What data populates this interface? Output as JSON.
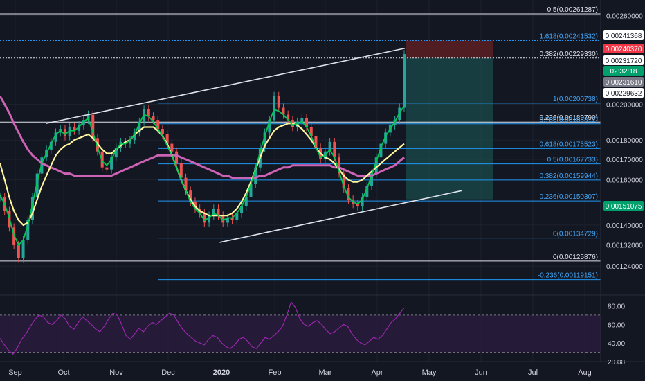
{
  "chart_data": {
    "type": "candlestick",
    "background": "#131722",
    "colors": {
      "up": "#26a69a",
      "down": "#ef5350",
      "ma_fast": "#00c853",
      "ma_mid": "#fff59d",
      "ma_slow": "#ce63b6",
      "fib_line": "#2196f3",
      "fib_label": "#42a5f5",
      "white_line": "#e0e3eb",
      "rsi_line": "#9c27b0",
      "rsi_band": "#2a1b3d",
      "target_zone": "#1b4b4b",
      "stop_zone": "#5b1e22",
      "price_label_bg": "#ffffff",
      "price_label_red": "#f23645",
      "price_label_green": "#00a06c",
      "price_label_grey": "#787b86",
      "axis_text": "#d1d4dc"
    },
    "x_axis": {
      "labels": [
        "Sep",
        "Oct",
        "Nov",
        "Dec",
        "2020",
        "Feb",
        "Mar",
        "Apr",
        "May",
        "Jun",
        "Jul",
        "Aug"
      ],
      "bold_labels": [
        "2020"
      ]
    },
    "y_axis": {
      "scale": "log",
      "range": [
        0.00115,
        0.0027
      ],
      "ticks": [
        "0.00260000",
        "0.00200000",
        "0.00180000",
        "0.00170000",
        "0.00160000",
        "0.00140000",
        "0.00132000",
        "0.00124000"
      ]
    },
    "price_labels": [
      {
        "text": "0.00241368",
        "style": "white"
      },
      {
        "text": "0.00240370",
        "style": "red"
      },
      {
        "text": "0.00231720",
        "style": "white"
      },
      {
        "text": "02:32:18",
        "style": "white"
      },
      {
        "text": "0.00231610",
        "style": "grey"
      },
      {
        "text": "0.00229632",
        "style": "white"
      },
      {
        "text": "0.00151075",
        "style": "green"
      }
    ],
    "fib_levels_upper": [
      {
        "label": "0.5(0.00261287)",
        "value": 0.00261287,
        "color": "white"
      },
      {
        "label": "1.618(0.00241532)",
        "value": 0.00241532,
        "color": "blue"
      },
      {
        "label": "0.382(0.00229330)",
        "value": 0.0022933,
        "color": "white"
      }
    ],
    "fib_levels_right": [
      {
        "label": "1(0.00200738)",
        "value": 0.00200738,
        "color": "blue"
      },
      {
        "label": "0.236(0.00189790)",
        "value": 0.0018979,
        "color": "white"
      },
      {
        "label": "0.786(0.00188812)",
        "value": 0.00188812,
        "color": "blue"
      },
      {
        "label": "0.618(0.00175523)",
        "value": 0.00175523,
        "color": "blue"
      },
      {
        "label": "0.5(0.00167733)",
        "value": 0.00167733,
        "color": "blue"
      },
      {
        "label": "0.382(0.00159944)",
        "value": 0.00159944,
        "color": "blue"
      },
      {
        "label": "0.236(0.00150307)",
        "value": 0.00150307,
        "color": "blue"
      },
      {
        "label": "0(0.00134729)",
        "value": 0.00134729,
        "color": "blue"
      },
      {
        "label": "0(0.00125876)",
        "value": 0.00125876,
        "color": "white"
      },
      {
        "label": "-0.236(0.00119151)",
        "value": 0.00119151,
        "color": "blue"
      }
    ],
    "rsi": {
      "ticks": [
        "80.00",
        "60.00",
        "40.00",
        "20.00"
      ],
      "range": [
        20,
        90
      ],
      "overbought": 70,
      "oversold": 30,
      "values": [
        45,
        38,
        32,
        28,
        35,
        44,
        50,
        58,
        65,
        70,
        68,
        62,
        60,
        64,
        70,
        66,
        58,
        55,
        62,
        68,
        64,
        60,
        55,
        52,
        58,
        66,
        72,
        70,
        60,
        48,
        44,
        50,
        56,
        52,
        58,
        62,
        60,
        64,
        68,
        72,
        70,
        62,
        55,
        50,
        46,
        42,
        40,
        38,
        44,
        48,
        46,
        40,
        36,
        34,
        38,
        44,
        46,
        42,
        36,
        34,
        40,
        46,
        44,
        48,
        52,
        58,
        70,
        84,
        78,
        66,
        60,
        58,
        62,
        64,
        60,
        54,
        50,
        52,
        56,
        60,
        58,
        50,
        44,
        40,
        38,
        42,
        46,
        44,
        48,
        55,
        62,
        66,
        72,
        78
      ]
    },
    "series": [
      {
        "name": "price",
        "values": [
          0.00152,
          0.00146,
          0.00139,
          0.00132,
          0.00127,
          0.00134,
          0.00142,
          0.00152,
          0.00163,
          0.00171,
          0.00175,
          0.00179,
          0.00184,
          0.00186,
          0.00182,
          0.00187,
          0.00185,
          0.00188,
          0.00191,
          0.00194,
          0.00181,
          0.00174,
          0.00166,
          0.00165,
          0.00171,
          0.00176,
          0.00179,
          0.00178,
          0.0018,
          0.00184,
          0.0019,
          0.00197,
          0.00193,
          0.00191,
          0.00186,
          0.00183,
          0.00178,
          0.00174,
          0.00168,
          0.00161,
          0.00155,
          0.0015,
          0.00147,
          0.00145,
          0.00141,
          0.00144,
          0.00147,
          0.00144,
          0.00141,
          0.00143,
          0.00142,
          0.00145,
          0.00148,
          0.00152,
          0.00158,
          0.00166,
          0.00176,
          0.00184,
          0.00191,
          0.00205,
          0.00198,
          0.00194,
          0.00191,
          0.00187,
          0.0019,
          0.00192,
          0.00187,
          0.00182,
          0.00176,
          0.0017,
          0.00174,
          0.00179,
          0.00171,
          0.00163,
          0.00156,
          0.00151,
          0.00149,
          0.00148,
          0.00152,
          0.00157,
          0.00163,
          0.00171,
          0.00178,
          0.00184,
          0.00188,
          0.00191,
          0.00198,
          0.00232
        ]
      }
    ],
    "moving_averages": {
      "fast": [
        0.00153,
        0.00149,
        0.00143,
        0.00136,
        0.00132,
        0.00134,
        0.0014,
        0.00149,
        0.00159,
        0.00168,
        0.00173,
        0.00178,
        0.00183,
        0.00185,
        0.00183,
        0.00185,
        0.00185,
        0.00187,
        0.0019,
        0.00192,
        0.00184,
        0.00176,
        0.00169,
        0.00167,
        0.0017,
        0.00175,
        0.00178,
        0.00178,
        0.0018,
        0.00183,
        0.00189,
        0.00194,
        0.00193,
        0.0019,
        0.00186,
        0.00182,
        0.00177,
        0.00172,
        0.00166,
        0.0016,
        0.00155,
        0.0015,
        0.00147,
        0.00145,
        0.00142,
        0.00143,
        0.00145,
        0.00144,
        0.00142,
        0.00143,
        0.00143,
        0.00145,
        0.00148,
        0.00152,
        0.00158,
        0.00165,
        0.00174,
        0.00182,
        0.0019,
        0.00197,
        0.00196,
        0.00194,
        0.00191,
        0.00188,
        0.00189,
        0.0019,
        0.00187,
        0.00182,
        0.00176,
        0.00171,
        0.00172,
        0.00175,
        0.00171,
        0.00164,
        0.00157,
        0.00152,
        0.0015,
        0.00149,
        0.00151,
        0.00156,
        0.00162,
        0.00169,
        0.00176,
        0.00182,
        0.00186,
        0.0019,
        0.00195,
        0.00199
      ],
      "mid": [
        0.00168,
        0.0016,
        0.00152,
        0.00146,
        0.00142,
        0.0014,
        0.00141,
        0.00145,
        0.00151,
        0.00157,
        0.00162,
        0.00167,
        0.00172,
        0.00175,
        0.00177,
        0.00178,
        0.0018,
        0.00181,
        0.00182,
        0.00183,
        0.00181,
        0.00178,
        0.00175,
        0.00173,
        0.00173,
        0.00175,
        0.00177,
        0.00179,
        0.0018,
        0.00183,
        0.00185,
        0.00187,
        0.00187,
        0.00187,
        0.00185,
        0.00182,
        0.00178,
        0.00172,
        0.00166,
        0.0016,
        0.00155,
        0.00151,
        0.00148,
        0.00146,
        0.00145,
        0.00144,
        0.00144,
        0.00144,
        0.00144,
        0.00144,
        0.00145,
        0.00147,
        0.0015,
        0.00154,
        0.00159,
        0.00165,
        0.00171,
        0.00177,
        0.00181,
        0.00185,
        0.00187,
        0.00188,
        0.00189,
        0.00189,
        0.00188,
        0.00186,
        0.00183,
        0.0018,
        0.00176,
        0.00173,
        0.00171,
        0.0017,
        0.00168,
        0.00165,
        0.00162,
        0.0016,
        0.00159,
        0.00159,
        0.0016,
        0.00162,
        0.00164,
        0.00166,
        0.00168,
        0.0017,
        0.00172,
        0.00174,
        0.00176,
        0.00178
      ],
      "slow": [
        0.00205,
        0.002,
        0.00195,
        0.00189,
        0.00184,
        0.00179,
        0.00175,
        0.00172,
        0.0017,
        0.00168,
        0.00167,
        0.00166,
        0.00165,
        0.00164,
        0.00163,
        0.00163,
        0.00162,
        0.00162,
        0.00162,
        0.00162,
        0.00162,
        0.00162,
        0.00162,
        0.00162,
        0.00162,
        0.00163,
        0.00164,
        0.00165,
        0.00166,
        0.00167,
        0.00168,
        0.00169,
        0.0017,
        0.00171,
        0.00172,
        0.00172,
        0.00172,
        0.00172,
        0.00172,
        0.00171,
        0.0017,
        0.00169,
        0.00168,
        0.00167,
        0.00166,
        0.00165,
        0.00164,
        0.00163,
        0.00162,
        0.00162,
        0.00161,
        0.00161,
        0.00161,
        0.00161,
        0.00161,
        0.00161,
        0.00162,
        0.00162,
        0.00163,
        0.00164,
        0.00165,
        0.00166,
        0.00166,
        0.00167,
        0.00167,
        0.00167,
        0.00167,
        0.00167,
        0.00167,
        0.00167,
        0.00167,
        0.00167,
        0.00166,
        0.00166,
        0.00165,
        0.00164,
        0.00163,
        0.00162,
        0.00162,
        0.00162,
        0.00162,
        0.00163,
        0.00164,
        0.00165,
        0.00166,
        0.00167,
        0.00169,
        0.00171
      ]
    },
    "trendlines": [
      {
        "name": "upper-trendline",
        "points": [
          [
            "2019-09-20",
            0.00189
          ],
          [
            "2020-04-17",
            0.00236
          ]
        ]
      },
      {
        "name": "lower-trendline",
        "points": [
          [
            "2019-12-30",
            0.00133
          ],
          [
            "2020-05-20",
            0.00155
          ]
        ]
      }
    ],
    "position": {
      "entry": 0.0022933,
      "stop": 0.00241532,
      "target": 0.00151075
    }
  }
}
